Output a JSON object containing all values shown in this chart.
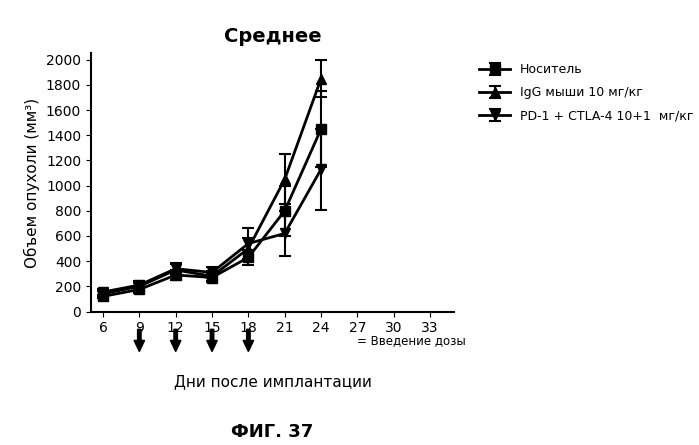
{
  "title": "Среднее",
  "xlabel": "Дни после имплантации",
  "ylabel": "Объем опухоли (мм³)",
  "figure_label": "ФИГ. 37",
  "dose_label": "= Введение дозы",
  "xlim": [
    5,
    35
  ],
  "ylim": [
    0,
    2050
  ],
  "xticks": [
    6,
    9,
    12,
    15,
    18,
    21,
    24,
    27,
    30,
    33
  ],
  "yticks": [
    0,
    200,
    400,
    600,
    800,
    1000,
    1200,
    1400,
    1600,
    1800,
    2000
  ],
  "dose_days": [
    9,
    12,
    15,
    18
  ],
  "series": [
    {
      "label": "Носитель",
      "marker": "s",
      "x": [
        6,
        9,
        12,
        15,
        18,
        21,
        24
      ],
      "y": [
        120,
        175,
        290,
        270,
        430,
        800,
        1450
      ],
      "yerr": [
        15,
        25,
        40,
        35,
        60,
        200,
        300
      ],
      "color": "#000000",
      "linewidth": 2,
      "markersize": 7
    },
    {
      "label": "IgG мыши 10 мг/кг",
      "marker": "^",
      "x": [
        6,
        9,
        12,
        15,
        18,
        21,
        24
      ],
      "y": [
        140,
        200,
        330,
        280,
        500,
        1050,
        1850
      ],
      "yerr": [
        20,
        30,
        50,
        40,
        80,
        200,
        150
      ],
      "color": "#000000",
      "linewidth": 2,
      "markersize": 7
    },
    {
      "label": "PD-1 + CTLA-4 10+1  мг/кг",
      "marker": "v",
      "x": [
        6,
        9,
        12,
        15,
        18,
        21,
        24
      ],
      "y": [
        155,
        210,
        340,
        310,
        540,
        620,
        1130
      ],
      "yerr": [
        20,
        30,
        45,
        40,
        120,
        180,
        320
      ],
      "color": "#000000",
      "linewidth": 2,
      "markersize": 7
    }
  ]
}
